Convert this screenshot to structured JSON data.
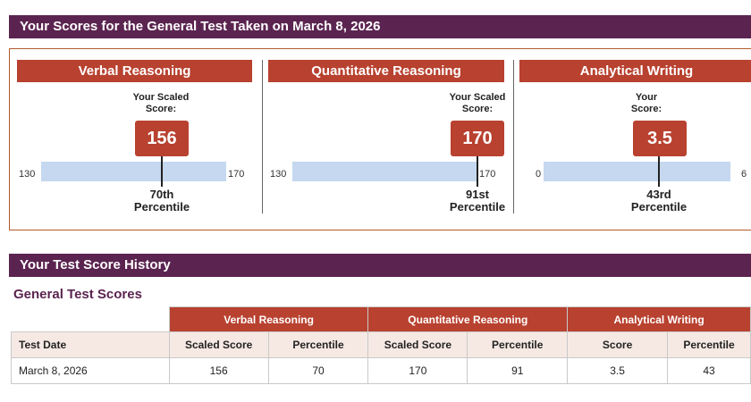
{
  "scores_banner": {
    "title": "Your Scores for the General Test Taken on March 8, 2026"
  },
  "panels": [
    {
      "name": "Verbal Reasoning",
      "label_line1": "Your Scaled",
      "label_line2": "Score:",
      "score": "156",
      "scale_min": "130",
      "scale_max": "170",
      "percentile_line1": "70th",
      "percentile_line2": "Percentile",
      "score_fraction": 0.65
    },
    {
      "name": "Quantitative Reasoning",
      "label_line1": "Your Scaled",
      "label_line2": "Score:",
      "score": "170",
      "scale_min": "130",
      "scale_max": "170",
      "percentile_line1": "91st",
      "percentile_line2": "Percentile",
      "score_fraction": 1.0
    },
    {
      "name": "Analytical Writing",
      "label_line1": "Your",
      "label_line2": "Score:",
      "score": "3.5",
      "scale_min": "0",
      "scale_max": "6",
      "percentile_line1": "43rd",
      "percentile_line2": "Percentile",
      "score_fraction": 0.583
    }
  ],
  "history_banner": {
    "title": "Your Test Score History"
  },
  "history": {
    "section_title": "General Test Scores",
    "groups": [
      "Verbal Reasoning",
      "Quantitative Reasoning",
      "Analytical Writing"
    ],
    "columns": [
      "Test Date",
      "Scaled Score",
      "Percentile",
      "Scaled Score",
      "Percentile",
      "Score",
      "Percentile"
    ],
    "rows": [
      [
        "March 8, 2026",
        "156",
        "70",
        "170",
        "91",
        "3.5",
        "43"
      ]
    ]
  },
  "colors": {
    "banner": "#5b2450",
    "accent": "#b8412f",
    "bar": "#c5d8ef"
  }
}
